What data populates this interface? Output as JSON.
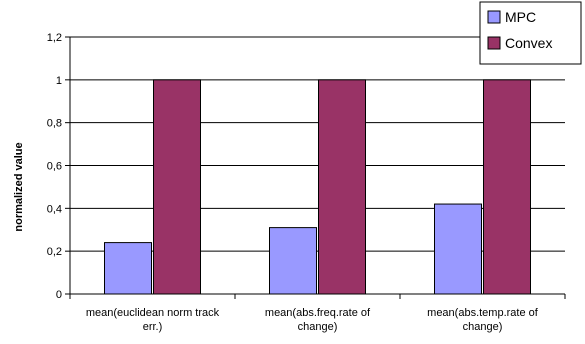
{
  "chart_data": {
    "type": "bar",
    "title": "",
    "xlabel": "",
    "ylabel": "normalized value",
    "categories": [
      [
        "mean(euclidean norm track",
        "err.)"
      ],
      [
        "mean(abs.freq.rate of",
        "change)"
      ],
      [
        "mean(abs.temp.rate of",
        "change)"
      ]
    ],
    "series": [
      {
        "name": "MPC",
        "color": "#9999ff",
        "values": [
          0.24,
          0.31,
          0.42
        ]
      },
      {
        "name": "Convex",
        "color": "#993366",
        "values": [
          1,
          1,
          1
        ]
      }
    ],
    "ylim": [
      0,
      1.2
    ],
    "yticks": [
      0,
      0.2,
      0.4,
      0.6,
      0.8,
      1,
      1.2
    ],
    "ytick_labels": [
      "0",
      "0,2",
      "0,4",
      "0,6",
      "0,8",
      "1",
      "1,2"
    ],
    "grid": true,
    "legend": "top-right"
  }
}
